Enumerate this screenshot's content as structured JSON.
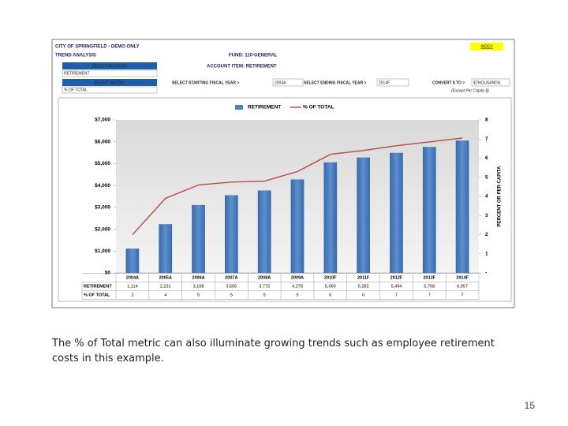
{
  "header": {
    "title": "CITY OF SPRINGFIELD - DEMO ONLY",
    "subtitle": "TREND ANALYSIS",
    "fund": "FUND:   110-GENERAL",
    "account_item": "ACCOUNT ITEM:  RETIREMENT",
    "index": "INDEX",
    "select_account": "SELECT ACCOUNT",
    "account_value": "RETIREMENT",
    "select_metric": "SELECT METRIC",
    "metric_value": "% OF TOTAL",
    "start_label": "SELECT STARTING FISCAL YEAR >",
    "start_value": "2004A",
    "end_label": "SELECT ENDING FISCAL YEAR >",
    "end_value": "2014F",
    "convert_label": "CONVERT $ TO >",
    "convert_value": "$THOUSANDS",
    "convert_note": "(Except Per Capita $)"
  },
  "chart_data": {
    "type": "bar_line",
    "legend": "top",
    "grid": false,
    "categories": [
      "2004A",
      "2005A",
      "2006A",
      "2007A",
      "2008A",
      "2009A",
      "2010F",
      "2011F",
      "2012F",
      "2013F",
      "2014F"
    ],
    "series": [
      {
        "name": "RETIREMENT",
        "color": "#4f81bd",
        "values": [
          1114,
          2231,
          3108,
          3556,
          3772,
          4278,
          5060,
          5282,
          5494,
          5768,
          6057
        ],
        "value_labels": [
          "1,114",
          "2,231",
          "3,108",
          "3,556",
          "3,772",
          "4,278",
          "5,060",
          "5,282",
          "5,494",
          "5,768",
          "6,057"
        ]
      },
      {
        "name": "% OF TOTAL",
        "color": "#c0504d",
        "axis": "y2",
        "values": [
          2,
          3.9,
          4.6,
          4.75,
          4.8,
          5.3,
          6.2,
          6.4,
          6.65,
          6.85,
          7.05
        ],
        "value_labels": [
          "2",
          "4",
          "5",
          "5",
          "5",
          "5",
          "6",
          "6",
          "7",
          "7",
          "7"
        ]
      }
    ],
    "ylim": [
      0,
      7000
    ],
    "yticks": [
      {
        "value": 0,
        "label": "$0"
      },
      {
        "value": 1000,
        "label": "$1,000"
      },
      {
        "value": 2000,
        "label": "$2,000"
      },
      {
        "value": 3000,
        "label": "$3,000"
      },
      {
        "value": 4000,
        "label": "$4,000"
      },
      {
        "value": 5000,
        "label": "$5,000"
      },
      {
        "value": 6000,
        "label": "$6,000"
      },
      {
        "value": 7000,
        "label": "$7,000"
      }
    ],
    "y2lim": [
      0,
      8
    ],
    "y2ticks": [
      {
        "value": 0,
        "label": "-"
      },
      1,
      2,
      3,
      4,
      5,
      6,
      7,
      8
    ],
    "y2label": "PERCENT OR PER CAPITA"
  },
  "caption": "The % of Total metric can also illuminate growing trends such as employee retirement costs in this example.",
  "page_number": "15"
}
